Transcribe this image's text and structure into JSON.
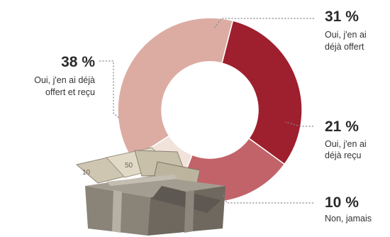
{
  "chart_data": {
    "type": "pie",
    "donut": true,
    "categories": [
      "Oui, j'en ai déjà offert",
      "Oui, j'en ai déjà reçu",
      "Non, jamais",
      "Oui, j'en ai déjà offert et reçu"
    ],
    "values": [
      31,
      21,
      10,
      38
    ],
    "value_labels": [
      "31 %",
      "21 %",
      "10 %",
      "38 %"
    ],
    "label_lines": [
      [
        "Oui, j'en ai",
        "déjà offert"
      ],
      [
        "Oui, j'en ai",
        "déjà reçu"
      ],
      [
        "Non, jamais"
      ],
      [
        "Oui, j'en ai déjà",
        "offert et reçu"
      ]
    ],
    "colors": [
      "#9e1f2e",
      "#c2636a",
      "#f1e2da",
      "#dcaca3"
    ],
    "legend": "none"
  }
}
